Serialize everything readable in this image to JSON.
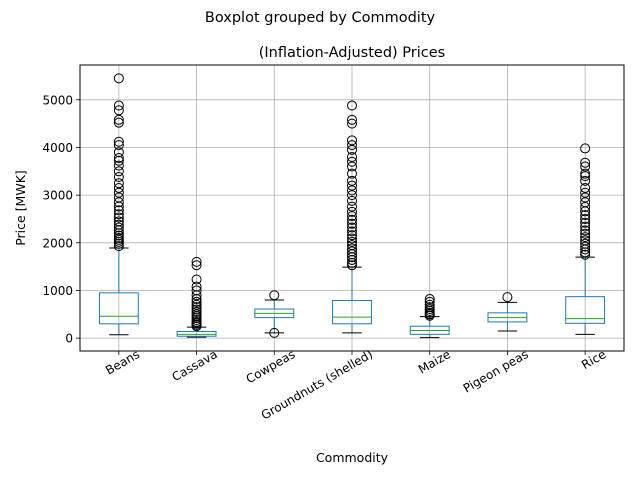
{
  "chart_data": {
    "type": "boxplot",
    "suptitle": "Boxplot grouped by Commodity",
    "title": "(Inflation-Adjusted) Prices",
    "xlabel": "Commodity",
    "ylabel": "Price [MWK]",
    "categories": [
      "Beans",
      "Cassava",
      "Cowpeas",
      "Groundnuts (shelled)",
      "Maize",
      "Pigeon peas",
      "Rice"
    ],
    "ylim": [
      -270,
      5730
    ],
    "yticks": [
      0,
      1000,
      2000,
      3000,
      4000,
      5000
    ],
    "grid": true,
    "colors": {
      "box": "#1f77b4",
      "median": "#2ca02c",
      "grid": "#b0b0b0",
      "whisker": "#000000"
    },
    "boxes": [
      {
        "name": "Beans",
        "min": 70,
        "q1": 300,
        "median": 460,
        "q3": 950,
        "max": 1890,
        "outliers": [
          1930,
          1980,
          2020,
          2060,
          2100,
          2150,
          2200,
          2260,
          2320,
          2380,
          2450,
          2530,
          2600,
          2680,
          2760,
          2850,
          2950,
          3050,
          3150,
          3250,
          3380,
          3500,
          3620,
          3720,
          3780,
          3900,
          4050,
          4120,
          4520,
          4580,
          4780,
          4880,
          5450
        ]
      },
      {
        "name": "Cassava",
        "min": 20,
        "q1": 40,
        "median": 80,
        "q3": 140,
        "max": 230,
        "outliers": [
          250,
          280,
          310,
          340,
          380,
          420,
          460,
          500,
          550,
          600,
          650,
          700,
          760,
          820,
          900,
          1000,
          1080,
          1230,
          1530,
          1600
        ]
      },
      {
        "name": "Cowpeas",
        "min": 110,
        "q1": 430,
        "median": 520,
        "q3": 610,
        "max": 800,
        "outliers": [
          110,
          900
        ]
      },
      {
        "name": "Groundnuts (shelled)",
        "min": 110,
        "q1": 300,
        "median": 440,
        "q3": 790,
        "max": 1490,
        "outliers": [
          1530,
          1580,
          1640,
          1700,
          1760,
          1820,
          1880,
          1950,
          2020,
          2090,
          2160,
          2240,
          2320,
          2400,
          2480,
          2560,
          2650,
          2760,
          2880,
          3000,
          3100,
          3200,
          3300,
          3450,
          3600,
          3700,
          3800,
          3950,
          4050,
          4150,
          4500,
          4580,
          4880
        ]
      },
      {
        "name": "Maize",
        "min": 10,
        "q1": 80,
        "median": 160,
        "q3": 250,
        "max": 450,
        "outliers": [
          470,
          500,
          530,
          570,
          610,
          650,
          700,
          760,
          820
        ]
      },
      {
        "name": "Pigeon peas",
        "min": 150,
        "q1": 340,
        "median": 430,
        "q3": 530,
        "max": 750,
        "outliers": [
          860
        ]
      },
      {
        "name": "Rice",
        "min": 80,
        "q1": 310,
        "median": 410,
        "q3": 870,
        "max": 1700,
        "outliers": [
          1750,
          1800,
          1860,
          1920,
          1980,
          2050,
          2120,
          2190,
          2260,
          2340,
          2420,
          2500,
          2580,
          2660,
          2750,
          2850,
          2950,
          3050,
          3150,
          3300,
          3400,
          3450,
          3600,
          3680,
          3980
        ]
      }
    ]
  }
}
